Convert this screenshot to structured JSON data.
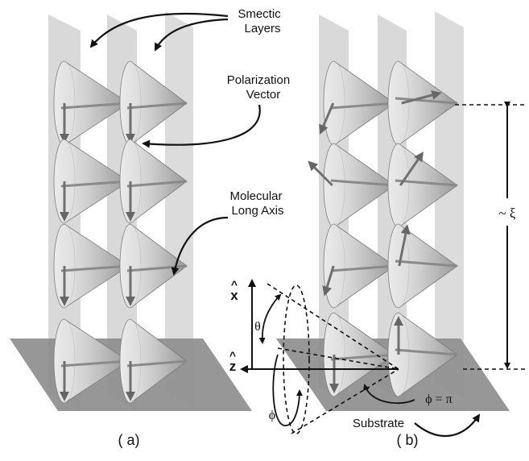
{
  "labels": {
    "smectic_layers_line1": "Smectic",
    "smectic_layers_line2": "Layers",
    "polarization_line1": "Polarization",
    "polarization_line2": "Vector",
    "molecular_line1": "Molecular",
    "molecular_line2": "Long Axis",
    "panel_a": "( a)",
    "panel_b": "( b)",
    "substrate": "Substrate",
    "xi": "~ ξ",
    "axis_x": "x",
    "axis_z": "z",
    "hat": "^",
    "theta": "θ",
    "phi": "ϕ",
    "phi_eq": "ϕ = π"
  },
  "colors": {
    "layer": "#d8d8d8",
    "substrate": "#8c8c8c",
    "cone_light": "#e2e2e2",
    "cone_dark": "#8a8a8a",
    "arrow": "#707070",
    "ink": "#111111"
  },
  "icons": {
    "cone": "tilted-cone",
    "polarization": "polarization-arrow"
  }
}
